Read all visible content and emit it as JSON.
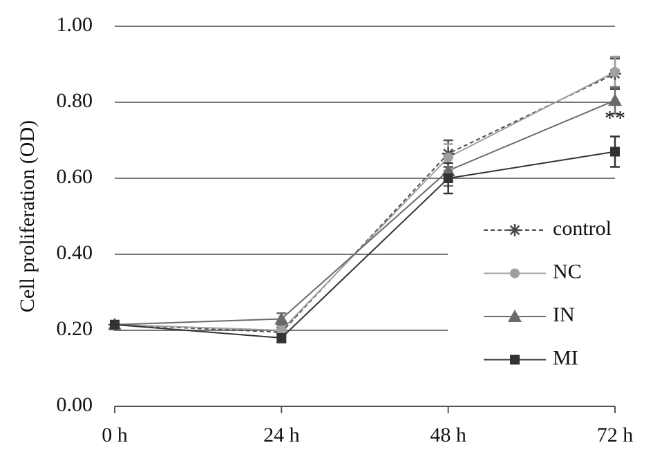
{
  "chart_data": {
    "type": "line",
    "y_label": "Cell proliferation (OD)",
    "categories": [
      "0 h",
      "24 h",
      "48 h",
      "72 h"
    ],
    "series": [
      {
        "name": "control",
        "color": "#4a4a4a",
        "marker": "star",
        "dash": true,
        "values": [
          0.215,
          0.195,
          0.665,
          0.875
        ],
        "errors": [
          0.005,
          0.012,
          0.035,
          0.04
        ]
      },
      {
        "name": "NC",
        "color": "#a0a0a0",
        "marker": "circle",
        "dash": false,
        "values": [
          0.215,
          0.2,
          0.655,
          0.88
        ],
        "errors": [
          0.005,
          0.012,
          0.035,
          0.04
        ]
      },
      {
        "name": "IN",
        "color": "#6a6a6a",
        "marker": "triangle",
        "dash": false,
        "values": [
          0.215,
          0.23,
          0.62,
          0.805
        ],
        "errors": [
          0.005,
          0.015,
          0.04,
          0.035
        ]
      },
      {
        "name": "MI",
        "color": "#333333",
        "marker": "square",
        "dash": false,
        "values": [
          0.215,
          0.18,
          0.6,
          0.67
        ],
        "errors": [
          0.005,
          0.012,
          0.04,
          0.04
        ]
      }
    ],
    "annotation": "**",
    "ylim": [
      0,
      1
    ],
    "yticks": [
      {
        "value": 0,
        "label": "0.00"
      },
      {
        "value": 0.2,
        "label": "0.20"
      },
      {
        "value": 0.4,
        "label": "0.40"
      },
      {
        "value": 0.6,
        "label": "0.60"
      },
      {
        "value": 0.8,
        "label": "0.80"
      },
      {
        "value": 1,
        "label": "1.00"
      }
    ],
    "grid": true
  }
}
